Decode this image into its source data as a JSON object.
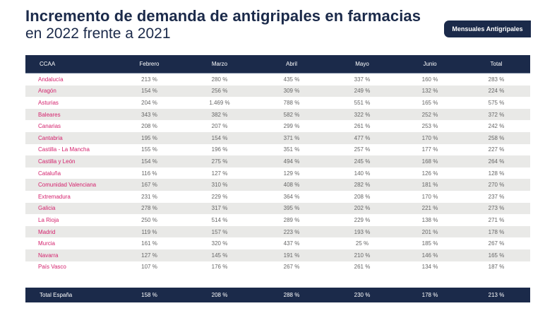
{
  "title": {
    "line1": "Incremento de demanda de antigripales en farmacias",
    "line2": "en 2022 frente a 2021"
  },
  "badge": "Mensuales Antigripales",
  "table": {
    "headers": [
      "CCAA",
      "Febrero",
      "Marzo",
      "Abril",
      "Mayo",
      "Junio",
      "Total"
    ],
    "rows": [
      [
        "Andalucía",
        "213 %",
        "280 %",
        "435 %",
        "337 %",
        "160 %",
        "283 %"
      ],
      [
        "Aragón",
        "154 %",
        "256 %",
        "309 %",
        "249 %",
        "132 %",
        "224 %"
      ],
      [
        "Asturias",
        "204 %",
        "1.469 %",
        "788 %",
        "551 %",
        "165 %",
        "575 %"
      ],
      [
        "Baleares",
        "343 %",
        "382 %",
        "582 %",
        "322 %",
        "252 %",
        "372 %"
      ],
      [
        "Canarias",
        "208 %",
        "207 %",
        "299 %",
        "261 %",
        "253 %",
        "242 %"
      ],
      [
        "Cantabria",
        "195 %",
        "154 %",
        "371 %",
        "477 %",
        "170 %",
        "258 %"
      ],
      [
        "Castilla - La Mancha",
        "155 %",
        "196 %",
        "351 %",
        "257 %",
        "177 %",
        "227 %"
      ],
      [
        "Castilla y León",
        "154 %",
        "275 %",
        "494 %",
        "245 %",
        "168 %",
        "264 %"
      ],
      [
        "Cataluña",
        "116 %",
        "127 %",
        "129 %",
        "140 %",
        "126 %",
        "128 %"
      ],
      [
        "Comunidad Valenciana",
        "167 %",
        "310 %",
        "408 %",
        "282 %",
        "181 %",
        "270 %"
      ],
      [
        "Extremadura",
        "231 %",
        "229 %",
        "364 %",
        "208 %",
        "170 %",
        "237 %"
      ],
      [
        "Galicia",
        "278 %",
        "317 %",
        "395 %",
        "202 %",
        "221 %",
        "273 %"
      ],
      [
        "La Rioja",
        "250 %",
        "514 %",
        "289 %",
        "229 %",
        "138 %",
        "271 %"
      ],
      [
        "Madrid",
        "119 %",
        "157 %",
        "223 %",
        "193 %",
        "201 %",
        "178 %"
      ],
      [
        "Murcia",
        "161 %",
        "320 %",
        "437 %",
        "25 %",
        "185 %",
        "267 %"
      ],
      [
        "Navarra",
        "127 %",
        "145 %",
        "191 %",
        "210 %",
        "146 %",
        "165 %"
      ],
      [
        "País Vasco",
        "107 %",
        "176 %",
        "267 %",
        "261 %",
        "134 %",
        "187 %"
      ]
    ],
    "total": [
      "Total España",
      "158 %",
      "208 %",
      "288 %",
      "230 %",
      "178 %",
      "213 %"
    ]
  }
}
